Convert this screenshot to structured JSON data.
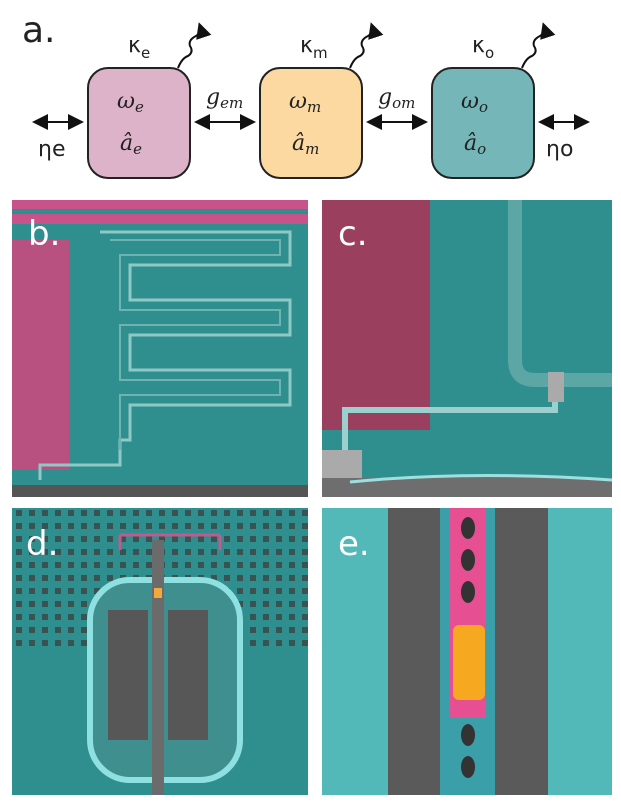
{
  "panel_a": {
    "label": "a.",
    "modes": [
      {
        "loss": {
          "sym": "κ",
          "sub": "e"
        },
        "freq": {
          "sym": "ω",
          "sub": "e"
        },
        "op": {
          "sym": "â",
          "sub": "e"
        }
      },
      {
        "loss": {
          "sym": "κ",
          "sub": "m"
        },
        "freq": {
          "sym": "ω",
          "sub": "m"
        },
        "op": {
          "sym": "â",
          "sub": "m"
        }
      },
      {
        "loss": {
          "sym": "κ",
          "sub": "o"
        },
        "freq": {
          "sym": "ω",
          "sub": "o"
        },
        "op": {
          "sym": "â",
          "sub": "o"
        }
      }
    ],
    "couplings": [
      {
        "sym": "g",
        "sub": "em"
      },
      {
        "sym": "g",
        "sub": "om"
      }
    ],
    "ports": [
      {
        "sym": "η",
        "sub": "e"
      },
      {
        "sym": "η",
        "sub": "o"
      }
    ]
  },
  "panels": [
    {
      "label": "b."
    },
    {
      "label": "c."
    },
    {
      "label": "d."
    },
    {
      "label": "e."
    }
  ]
}
